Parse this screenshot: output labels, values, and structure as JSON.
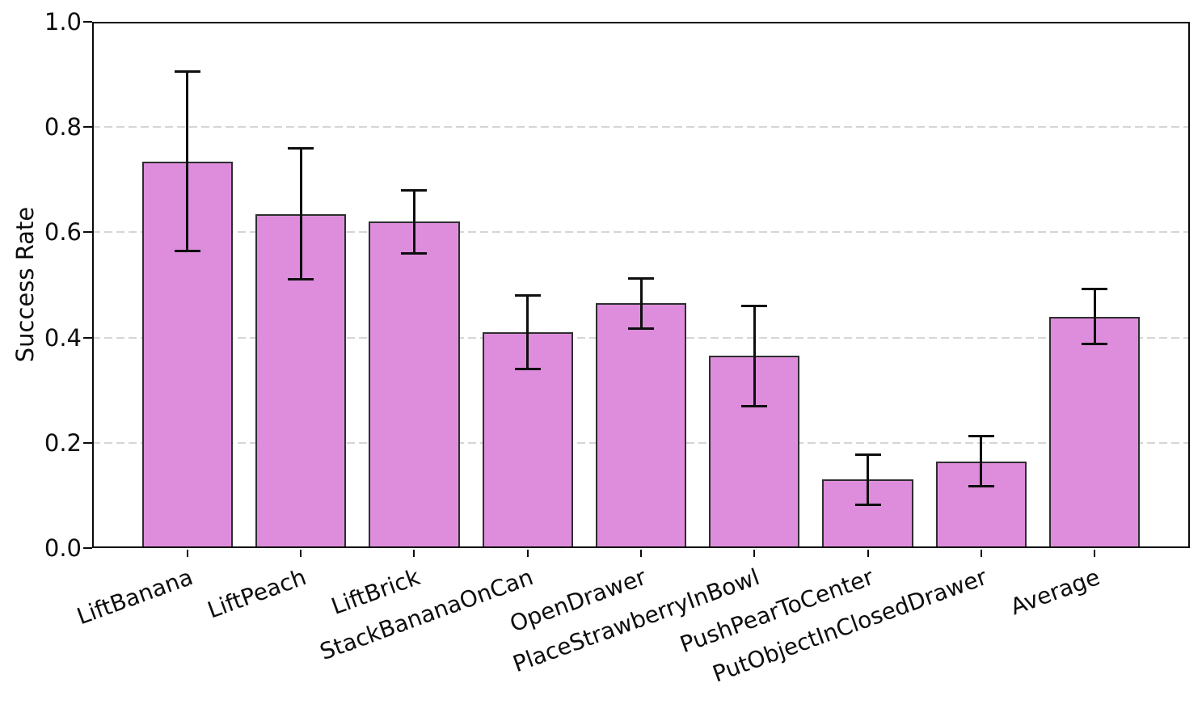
{
  "figure": {
    "background": "#ffffff",
    "kind": "matplotlib-style bar chart with error bars"
  },
  "chart_data": {
    "type": "bar",
    "title": "",
    "xlabel": "",
    "ylabel": "Success Rate",
    "ylim": [
      0.0,
      1.0
    ],
    "yticks": [
      0.0,
      0.2,
      0.4,
      0.6,
      0.8,
      1.0
    ],
    "grid": "horizontal-dashed",
    "legend": "none",
    "categories": [
      "LiftBanana",
      "LiftPeach",
      "LiftBrick",
      "StackBananaOnCan",
      "OpenDrawer",
      "PlaceStrawberryInBowl",
      "PushPearToCenter",
      "PutObjectInClosedDrawer",
      "Average"
    ],
    "values": [
      0.735,
      0.635,
      0.62,
      0.41,
      0.465,
      0.365,
      0.13,
      0.165,
      0.44
    ],
    "errors": [
      0.17,
      0.125,
      0.06,
      0.07,
      0.048,
      0.095,
      0.048,
      0.048,
      0.052
    ],
    "bar_color": "#DD8DDC",
    "bar_edge_color": "#2E2E2E",
    "error_bar_color": "#0E0E0E",
    "gridline_color": "#D5D5D5",
    "axis_color": "#0A0A0A",
    "x_tick_label_rotation_deg": 20
  }
}
